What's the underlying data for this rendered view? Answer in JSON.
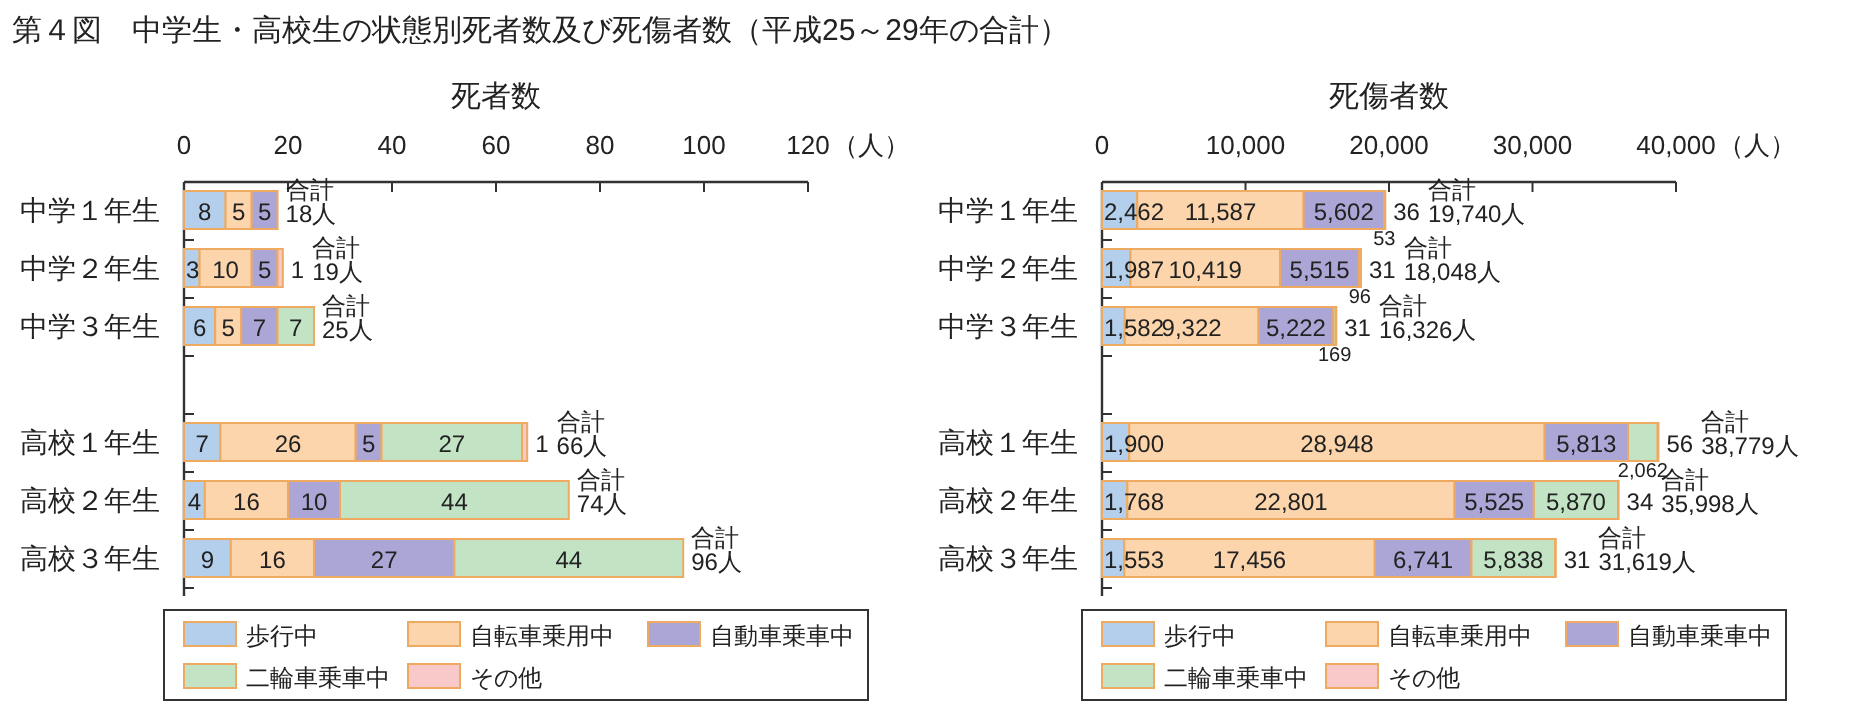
{
  "chart_data": [
    {
      "type": "bar",
      "orientation": "horizontal",
      "stacked": true,
      "title": "死者数",
      "xlabel": "（人）",
      "annotations": [
        "第４図　中学生・高校生の状態別死者数及び死傷者数（平成25～29年の合計）"
      ],
      "legend": "bottom",
      "categories": [
        "中学１年生",
        "中学２年生",
        "中学３年生",
        null,
        "高校１年生",
        "高校２年生",
        "高校３年生"
      ],
      "xlim": [
        0,
        120
      ],
      "xticks": [
        0,
        20,
        40,
        60,
        80,
        100,
        120
      ],
      "series": [
        {
          "name": "歩行中",
          "color": "#b4cfec",
          "values": [
            8,
            3,
            6,
            null,
            7,
            4,
            9
          ],
          "value_labels": [
            "8",
            "3",
            "6",
            null,
            "7",
            "4",
            "9"
          ]
        },
        {
          "name": "自転車乗用中",
          "color": "#fcd5ac",
          "values": [
            5,
            10,
            5,
            null,
            26,
            16,
            16
          ],
          "value_labels": [
            "5",
            "10",
            "5",
            null,
            "26",
            "16",
            "16"
          ]
        },
        {
          "name": "自動車乗車中",
          "color": "#aca6d6",
          "values": [
            5,
            5,
            7,
            null,
            5,
            10,
            27
          ],
          "value_labels": [
            "5",
            "5",
            "7",
            null,
            "5",
            "10",
            "27"
          ]
        },
        {
          "name": "二輪車乗車中",
          "color": "#c3e3c5",
          "values": [
            0,
            0,
            7,
            null,
            27,
            44,
            44
          ],
          "value_labels": [
            null,
            null,
            "7",
            null,
            "27",
            "44",
            "44"
          ]
        },
        {
          "name": "その他",
          "color": "#f9c8c8",
          "values": [
            0,
            1,
            0,
            null,
            1,
            0,
            0
          ],
          "value_labels": [
            null,
            "1",
            null,
            null,
            "1",
            null,
            null
          ]
        }
      ],
      "totals": [
        "合計\n18人",
        "合計\n19人",
        "合計\n25人",
        null,
        "合計\n66人",
        "合計\n74人",
        "合計\n96人"
      ]
    },
    {
      "type": "bar",
      "orientation": "horizontal",
      "stacked": true,
      "title": "死傷者数",
      "xlabel": "（人）",
      "legend": "bottom",
      "categories": [
        "中学１年生",
        "中学２年生",
        "中学３年生",
        null,
        "高校１年生",
        "高校２年生",
        "高校３年生"
      ],
      "xlim": [
        0,
        40000
      ],
      "xticks": [
        0,
        {
          "value": 10000,
          "label": "10,000"
        },
        {
          "value": 20000,
          "label": "20,000"
        },
        {
          "value": 30000,
          "label": "30,000"
        },
        {
          "value": 40000,
          "label": "40,000"
        }
      ],
      "series": [
        {
          "name": "歩行中",
          "color": "#b4cfec",
          "values": [
            2462,
            1987,
            1582,
            null,
            1900,
            1768,
            1553
          ],
          "value_labels": [
            "2,462",
            "1,987",
            "1,582",
            null,
            "1,900",
            "1,768",
            "1,553"
          ]
        },
        {
          "name": "自転車乗用中",
          "color": "#fcd5ac",
          "values": [
            11587,
            10419,
            9322,
            null,
            28948,
            22801,
            17456
          ],
          "value_labels": [
            "11,587",
            "10,419",
            "9,322",
            null,
            "28,948",
            "22,801",
            "17,456"
          ]
        },
        {
          "name": "自動車乗車中",
          "color": "#aca6d6",
          "values": [
            5602,
            5515,
            5222,
            null,
            5813,
            5525,
            6741
          ],
          "value_labels": [
            "5,602",
            "5,515",
            "5,222",
            null,
            "5,813",
            "5,525",
            "6,741"
          ]
        },
        {
          "name": "二輪車乗車中",
          "color": "#c3e3c5",
          "values": [
            53,
            96,
            169,
            null,
            2062,
            5870,
            5838
          ],
          "value_labels": [
            "53",
            "96",
            "169",
            null,
            "2,062",
            "5,870",
            "5,838"
          ]
        },
        {
          "name": "その他",
          "color": "#f9c8c8",
          "values": [
            36,
            31,
            31,
            null,
            56,
            34,
            31
          ],
          "value_labels": [
            "36",
            "31",
            "31",
            null,
            "56",
            "34",
            "31"
          ]
        }
      ],
      "totals": [
        "合計\n19,740人",
        "合計\n18,048人",
        "合計\n16,326人",
        null,
        "合計\n38,779人",
        "合計\n35,998人",
        "合計\n31,619人"
      ]
    }
  ]
}
